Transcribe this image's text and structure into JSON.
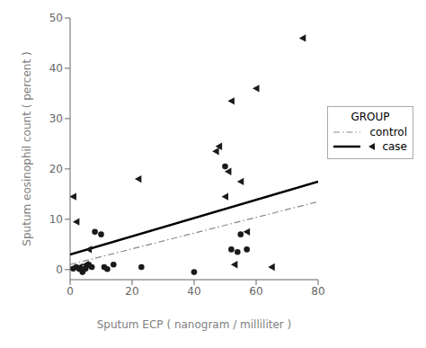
{
  "chart_data": {
    "type": "scatter",
    "xlabel": "Sputum ECP ( nanogram / milliliter )",
    "ylabel": "Sputum eosinophil count ( percent )",
    "xlim": [
      0,
      80
    ],
    "ylim": [
      -2,
      50
    ],
    "xticks": [
      0,
      20,
      40,
      60,
      80
    ],
    "yticks": [
      0,
      10,
      20,
      30,
      40,
      50
    ],
    "grid": false,
    "legend": "right",
    "legend_title": "GROUP",
    "series": [
      {
        "name": "control",
        "color": "#1a1a1a",
        "marker": "circle",
        "x": [
          1,
          2,
          3,
          4,
          5,
          6,
          7,
          8,
          10,
          11,
          12,
          14,
          23,
          40,
          50,
          52,
          54,
          55,
          57
        ],
        "values": [
          0.2,
          0.5,
          0.1,
          -0.5,
          0.2,
          1.0,
          0.5,
          7.5,
          7.0,
          0.5,
          0.1,
          1.0,
          0.5,
          -0.5,
          20.5,
          4.0,
          3.5,
          7.0,
          4.0
        ],
        "fit": {
          "x": [
            0,
            80
          ],
          "values": [
            1.0,
            13.5
          ],
          "color": "#888888",
          "line_style": "dashdot"
        }
      },
      {
        "name": "case",
        "color": "#1a1a1a",
        "marker": "triangle-left",
        "x": [
          1,
          2,
          3,
          4,
          5,
          6,
          22,
          47,
          48,
          50,
          51,
          52,
          53,
          55,
          57,
          60,
          65,
          75
        ],
        "values": [
          14.5,
          9.5,
          0.5,
          0.2,
          1.0,
          4.0,
          18.0,
          23.5,
          24.5,
          14.5,
          19.5,
          33.5,
          1.0,
          17.5,
          7.5,
          36.0,
          0.5,
          46.0
        ],
        "fit": {
          "x": [
            0,
            80
          ],
          "values": [
            3.0,
            17.5
          ],
          "color": "#000000",
          "line_style": "solid"
        }
      }
    ]
  }
}
